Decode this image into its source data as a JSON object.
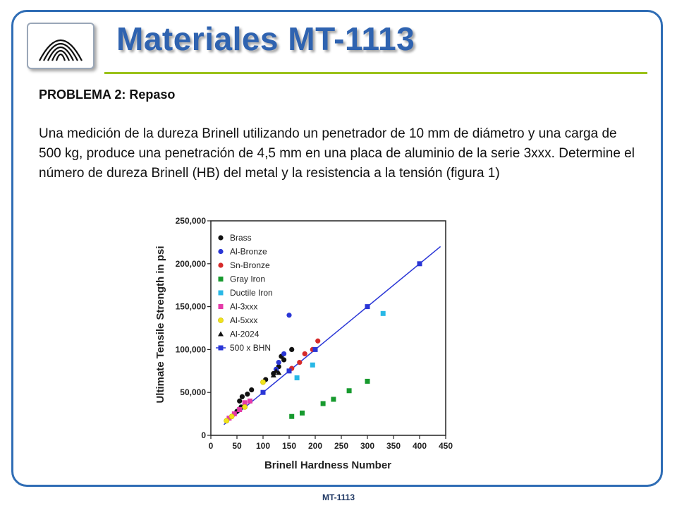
{
  "slide": {
    "title": "Materiales MT-1113",
    "footer": "MT-1113"
  },
  "problem": {
    "heading": "PROBLEMA 2: Repaso",
    "body": "Una medición de la dureza Brinell utilizando un penetrador de 10 mm de diámetro y una carga de 500 kg, produce una penetración de 4,5 mm en una placa de aluminio de la serie 3xxx. Determine el número de dureza Brinell (HB) del metal y la resistencia a la tensión (figura 1)"
  },
  "colors": {
    "accent_blue": "#2f63b0",
    "rule_green": "#9bc21a"
  },
  "chart_data": {
    "type": "scatter",
    "xlabel": "Brinell Hardness Number",
    "ylabel": "Ultimate Tensile Strength in psi",
    "xlim": [
      0,
      450
    ],
    "ylim": [
      0,
      250000
    ],
    "x_ticks": [
      "0",
      "50",
      "100",
      "150",
      "200",
      "250",
      "300",
      "350",
      "400",
      "450"
    ],
    "y_ticks": [
      "0",
      "50,000",
      "100,000",
      "150,000",
      "200,000",
      "250,000"
    ],
    "legend_position": "top-left",
    "series": [
      {
        "name": "Brass",
        "marker": "circle",
        "color": "#111111",
        "points": [
          [
            55,
            40
          ],
          [
            60,
            45
          ],
          [
            70,
            48
          ],
          [
            78,
            53
          ],
          [
            105,
            65
          ],
          [
            120,
            72
          ],
          [
            130,
            80
          ],
          [
            135,
            92
          ],
          [
            140,
            88
          ],
          [
            155,
            100
          ],
          [
            58,
            33
          ],
          [
            50,
            28
          ]
        ]
      },
      {
        "name": "Al-Bronze",
        "marker": "circle",
        "color": "#2a36d6",
        "points": [
          [
            125,
            77
          ],
          [
            130,
            85
          ],
          [
            140,
            95
          ],
          [
            150,
            140
          ]
        ]
      },
      {
        "name": "Sn-Bronze",
        "marker": "circle",
        "color": "#d62a2a",
        "points": [
          [
            155,
            78
          ],
          [
            170,
            85
          ],
          [
            180,
            95
          ],
          [
            195,
            100
          ],
          [
            205,
            110
          ]
        ]
      },
      {
        "name": "Gray Iron",
        "marker": "square",
        "color": "#179a2e",
        "points": [
          [
            155,
            22
          ],
          [
            175,
            26
          ],
          [
            215,
            37
          ],
          [
            235,
            42
          ],
          [
            265,
            52
          ],
          [
            300,
            63
          ]
        ]
      },
      {
        "name": "Ductile Iron",
        "marker": "square",
        "color": "#29b8e6",
        "points": [
          [
            165,
            67
          ],
          [
            195,
            82
          ],
          [
            330,
            142
          ]
        ]
      },
      {
        "name": "Al-3xxx",
        "marker": "square",
        "color": "#e53aa8",
        "points": [
          [
            35,
            20
          ],
          [
            45,
            25
          ],
          [
            55,
            30
          ],
          [
            65,
            38
          ],
          [
            75,
            40
          ]
        ]
      },
      {
        "name": "Al-5xxx",
        "marker": "circle",
        "color": "#f0e21a",
        "points": [
          [
            30,
            17
          ],
          [
            40,
            22
          ],
          [
            65,
            33
          ],
          [
            100,
            62
          ]
        ]
      },
      {
        "name": "Al-2024",
        "marker": "triangle",
        "color": "#111111",
        "points": [
          [
            120,
            70
          ],
          [
            125,
            75
          ],
          [
            130,
            73
          ]
        ]
      },
      {
        "name": "500 x BHN",
        "marker": "square-line",
        "color": "#2a36d6",
        "points": [
          [
            100,
            50
          ],
          [
            150,
            75
          ],
          [
            200,
            100
          ],
          [
            300,
            150
          ],
          [
            400,
            200
          ]
        ],
        "line": [
          [
            25,
            12.5
          ],
          [
            440,
            220
          ]
        ]
      }
    ],
    "y_unit_note": "point y values in thousands of psi"
  }
}
